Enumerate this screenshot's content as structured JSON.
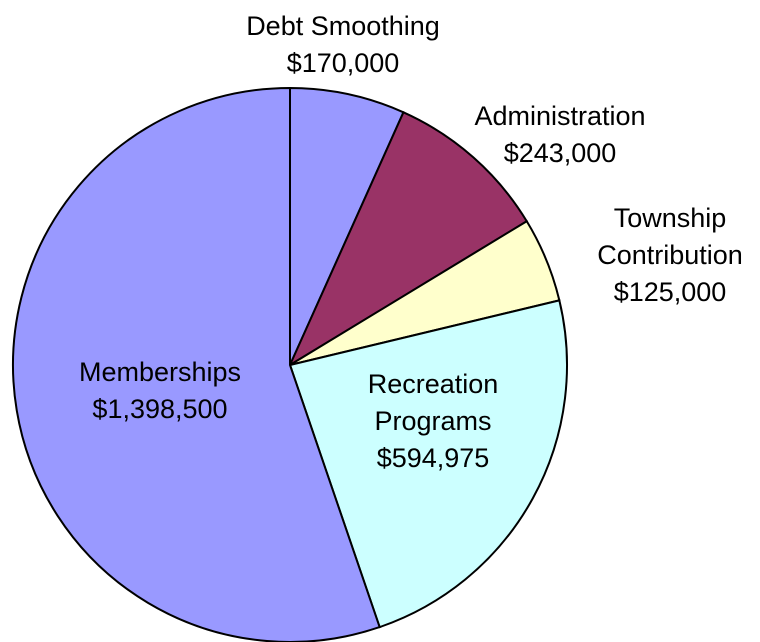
{
  "chart_data": {
    "type": "pie",
    "categories": [
      "Debt Smoothing",
      "Administration",
      "Township Contribution",
      "Recreation Programs",
      "Memberships"
    ],
    "values": [
      170000,
      243000,
      125000,
      594975,
      1398500
    ],
    "value_labels": [
      "$170,000",
      "$243,000",
      "$125,000",
      "$594,975",
      "$1,398,500"
    ],
    "colors": [
      "#9999ff",
      "#993366",
      "#ffffcc",
      "#ccffff",
      "#9999ff"
    ]
  }
}
